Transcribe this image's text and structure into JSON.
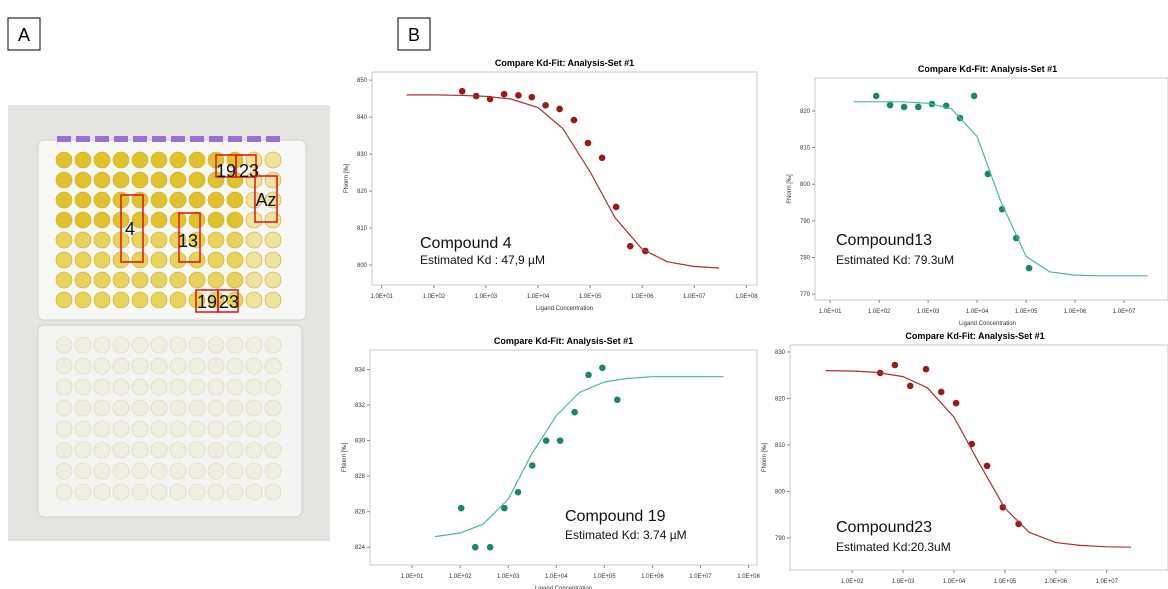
{
  "panel_a": {
    "label": "A",
    "well_labels": [
      "4",
      "13",
      "19",
      "23",
      "19",
      "23",
      "Az"
    ]
  },
  "panel_b": {
    "label": "B"
  },
  "chart_data": [
    {
      "type": "scatter",
      "title": "Compare Kd-Fit: Analysis-Set #1",
      "x_label": "Ligand Concentration",
      "y_label": "FNorm [‰]",
      "annotations": [
        "Compound  4",
        "Estimated Kd : 47,9 µM"
      ],
      "log_x": true,
      "xlim": [
        6.5,
        160000000
      ],
      "ylim": [
        794.6,
        852.2
      ],
      "xticks": [
        {
          "value": 10,
          "label": "1.0E+01"
        },
        {
          "value": 100,
          "label": "1.0E+02"
        },
        {
          "value": 1000,
          "label": "1.0E+03"
        },
        {
          "value": 10000,
          "label": "1.0E+04"
        },
        {
          "value": 100000,
          "label": "1.0E+05"
        },
        {
          "value": 1000000,
          "label": "1.0E+06"
        },
        {
          "value": 10000000,
          "label": "1.0E+07"
        },
        {
          "value": 100000000,
          "label": "1.0E+08"
        }
      ],
      "yticks": [
        800,
        810,
        820,
        830,
        840,
        850
      ],
      "series": [
        {
          "color": "#9b1b1b",
          "x": [
            350,
            650,
            1200,
            2240,
            4200,
            7600,
            14000,
            26000,
            49000,
            91000,
            170000,
            316000,
            590000,
            1150000
          ],
          "values": [
            847.0,
            845.7,
            844.9,
            846.2,
            845.9,
            845.4,
            843.2,
            842.2,
            839.2,
            833.0,
            829.0,
            815.7,
            805.1,
            803.8
          ]
        },
        {
          "color": "#a83232",
          "style": "line",
          "x": [
            30,
            100,
            300,
            1000,
            3000,
            10000,
            30000,
            100000,
            300000,
            1000000,
            3000000,
            10000000,
            30000000
          ],
          "values": [
            846.0,
            846.0,
            845.9,
            845.6,
            844.9,
            842.6,
            836.9,
            825.2,
            812.8,
            804.3,
            800.9,
            799.6,
            799.2
          ]
        }
      ]
    },
    {
      "type": "scatter",
      "title": "Compare Kd-Fit: Analysis-Set #1",
      "x_label": "Ligand Concentration",
      "y_label": "FNorm [‰]",
      "annotations": [
        "Compound13",
        "Estimated Kd: 79.3uM"
      ],
      "log_x": true,
      "xlim": [
        4.9,
        79000000
      ],
      "ylim": [
        768.4,
        829.0
      ],
      "xticks": [
        {
          "value": 10,
          "label": "1.0E+01"
        },
        {
          "value": 100,
          "label": "1.0E+02"
        },
        {
          "value": 1000,
          "label": "1.0E+03"
        },
        {
          "value": 10000,
          "label": "1.0E+04"
        },
        {
          "value": 100000,
          "label": "1.0E+05"
        },
        {
          "value": 1000000,
          "label": "1.0E+06"
        },
        {
          "value": 10000000,
          "label": "1.0E+07"
        }
      ],
      "yticks": [
        770,
        780,
        790,
        800,
        810,
        820
      ],
      "series": [
        {
          "color": "#1b8a5c",
          "x": [
            87,
            167,
            323,
            630,
            1200,
            2340,
            4470,
            8700,
            16600,
            32400,
            63000,
            115000
          ],
          "values": [
            824.1,
            821.6,
            821.1,
            821.1,
            821.9,
            821.4,
            818.1,
            824.1,
            802.8,
            793.2,
            785.3,
            777.1
          ]
        },
        {
          "color": "#4db896",
          "style": "line",
          "x": [
            30,
            100,
            300,
            1000,
            3000,
            10000,
            30000,
            100000,
            300000,
            1000000,
            3000000,
            10000000,
            30000000
          ],
          "values": [
            822.5,
            822.5,
            822.5,
            822.1,
            820.6,
            813.0,
            795.5,
            780.3,
            776.1,
            775.2,
            775.0,
            775.0,
            775.0
          ]
        }
      ]
    },
    {
      "type": "scatter",
      "title": "Compare Kd-Fit: Analysis-Set #1",
      "x_label": "Ligand Concentration",
      "y_label": "FNorm [‰]",
      "annotations": [
        "Compound 19",
        "Estimated Kd: 3.74 µM"
      ],
      "log_x": true,
      "xlim": [
        1.33,
        150000000
      ],
      "ylim": [
        823.0,
        835.1
      ],
      "xticks": [
        {
          "value": 10,
          "label": "1.0E+01"
        },
        {
          "value": 100,
          "label": "1.0E+02"
        },
        {
          "value": 1000,
          "label": "1.0E+03"
        },
        {
          "value": 10000,
          "label": "1.0E+04"
        },
        {
          "value": 100000,
          "label": "1.0E+05"
        },
        {
          "value": 1000000,
          "label": "1.0E+06"
        },
        {
          "value": 10000000,
          "label": "1.0E+07"
        },
        {
          "value": 100000000,
          "label": "1.0E+08"
        }
      ],
      "yticks": [
        824,
        826,
        828,
        830,
        832,
        834
      ],
      "series": [
        {
          "color": "#1b8a5c",
          "x": [
            105,
            206,
            420,
            830,
            1600,
            3160,
            6170,
            12000,
            24000,
            46800,
            91000,
            186000
          ],
          "values": [
            826.2,
            824.0,
            824.0,
            826.2,
            827.1,
            828.6,
            830.0,
            830.0,
            831.6,
            833.7,
            834.1,
            832.3
          ]
        },
        {
          "color": "#4db896",
          "style": "line",
          "x": [
            30,
            100,
            300,
            1000,
            3000,
            10000,
            30000,
            100000,
            300000,
            1000000,
            3000000,
            10000000,
            30000000
          ],
          "values": [
            824.6,
            824.8,
            825.3,
            826.7,
            829.2,
            831.4,
            832.7,
            833.3,
            833.5,
            833.6,
            833.6,
            833.6,
            833.6
          ]
        }
      ]
    },
    {
      "type": "scatter",
      "title": "Compare Kd-Fit: Analysis-Set #1",
      "x_label": "Ligand Concentration",
      "y_label": "FNorm [‰]",
      "annotations": [
        "Compound23",
        "Estimated Kd:20.3uM"
      ],
      "log_x": true,
      "xlim": [
        6.0,
        160000000
      ],
      "ylim": [
        783.1,
        831.5
      ],
      "xticks": [
        {
          "value": 100,
          "label": "1.0E+02"
        },
        {
          "value": 1000,
          "label": "1.0E+03"
        },
        {
          "value": 10000,
          "label": "1.0E+04"
        },
        {
          "value": 100000,
          "label": "1.0E+05"
        },
        {
          "value": 1000000,
          "label": "1.0E+06"
        },
        {
          "value": 10000000,
          "label": "1.0E+07"
        }
      ],
      "yticks": [
        790,
        800,
        810,
        820,
        830
      ],
      "series": [
        {
          "color": "#9b1b1b",
          "x": [
            355,
            690,
            1380,
            2820,
            5620,
            11000,
            22400,
            44700,
            91200,
            186000
          ],
          "values": [
            825.5,
            827.2,
            822.7,
            826.3,
            821.4,
            819.0,
            810.2,
            805.5,
            796.6,
            793.0
          ]
        },
        {
          "color": "#a83232",
          "style": "line",
          "x": [
            30,
            100,
            300,
            1000,
            3000,
            10000,
            30000,
            100000,
            300000,
            1000000,
            3000000,
            10000000,
            30000000
          ],
          "values": [
            826.0,
            825.9,
            825.6,
            824.7,
            822.3,
            816.0,
            806.4,
            796.4,
            791.2,
            789.0,
            788.4,
            788.1,
            788.0
          ]
        }
      ]
    }
  ]
}
